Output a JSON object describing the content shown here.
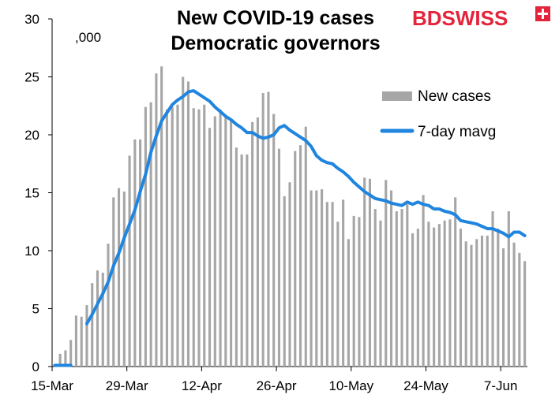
{
  "chart_data": {
    "type": "bar",
    "title": [
      "New COVID-19 cases",
      "Democratic governors"
    ],
    "unit_label": ",000",
    "ylim": [
      0,
      30
    ],
    "yticks": [
      0,
      5,
      10,
      15,
      20,
      25,
      30
    ],
    "ytick_labels": [
      "0",
      "5",
      "10",
      "15",
      "20",
      "25",
      "30"
    ],
    "xtick_labels": [
      "15-Mar",
      "29-Mar",
      "12-Apr",
      "26-Apr",
      "10-May",
      "24-May",
      "7-Jun"
    ],
    "dates": [
      "15-Mar",
      "16-Mar",
      "17-Mar",
      "18-Mar",
      "19-Mar",
      "20-Mar",
      "21-Mar",
      "22-Mar",
      "23-Mar",
      "24-Mar",
      "25-Mar",
      "26-Mar",
      "27-Mar",
      "28-Mar",
      "29-Mar",
      "30-Mar",
      "31-Mar",
      "1-Apr",
      "2-Apr",
      "3-Apr",
      "4-Apr",
      "5-Apr",
      "6-Apr",
      "7-Apr",
      "8-Apr",
      "9-Apr",
      "10-Apr",
      "11-Apr",
      "12-Apr",
      "13-Apr",
      "14-Apr",
      "15-Apr",
      "16-Apr",
      "17-Apr",
      "18-Apr",
      "19-Apr",
      "20-Apr",
      "21-Apr",
      "22-Apr",
      "23-Apr",
      "24-Apr",
      "25-Apr",
      "26-Apr",
      "27-Apr",
      "28-Apr",
      "29-Apr",
      "30-Apr",
      "1-May",
      "2-May",
      "3-May",
      "4-May",
      "5-May",
      "6-May",
      "7-May",
      "8-May",
      "9-May",
      "10-May",
      "11-May",
      "12-May",
      "13-May",
      "14-May",
      "15-May",
      "16-May",
      "17-May",
      "18-May",
      "19-May",
      "20-May",
      "21-May",
      "22-May",
      "23-May",
      "24-May",
      "25-May",
      "26-May",
      "27-May",
      "28-May",
      "29-May",
      "30-May",
      "31-May",
      "1-Jun",
      "2-Jun",
      "3-Jun",
      "4-Jun",
      "5-Jun",
      "6-Jun",
      "7-Jun",
      "8-Jun",
      "9-Jun",
      "10-Jun",
      "11-Jun"
    ],
    "series": [
      {
        "name": "New cases",
        "type": "bar",
        "color": "#a6a6a6",
        "values": [
          0.1,
          1.1,
          1.4,
          2.3,
          4.4,
          4.3,
          5.3,
          7.2,
          8.3,
          8.1,
          10.6,
          14.6,
          15.4,
          15.1,
          18.2,
          19.6,
          19.6,
          22.4,
          22.8,
          25.3,
          25.9,
          22.2,
          22.4,
          22.6,
          25.0,
          24.6,
          22.3,
          22.2,
          22.6,
          20.6,
          21.6,
          22.2,
          21.6,
          21.2,
          18.9,
          18.3,
          18.3,
          21.1,
          21.5,
          23.6,
          23.7,
          21.8,
          18.8,
          14.7,
          15.9,
          18.6,
          19.1,
          20.7,
          15.2,
          15.2,
          15.3,
          14.2,
          14.2,
          12.5,
          14.4,
          11.0,
          13.0,
          12.9,
          16.3,
          16.2,
          13.6,
          12.6,
          16.1,
          15.2,
          13.4,
          13.6,
          14.0,
          11.5,
          11.9,
          14.8,
          12.5,
          12.0,
          12.3,
          12.6,
          12.7,
          14.6,
          11.9,
          10.8,
          10.5,
          11.0,
          11.3,
          11.3,
          13.4,
          11.9,
          10.2,
          13.4,
          10.7,
          9.8,
          9.1
        ],
        "values_note": ""
      },
      {
        "name": "7-day mavg",
        "type": "line",
        "color": "#1f85de",
        "start_index": 0,
        "values": [
          0.1,
          0.1,
          0.1,
          0.1,
          null,
          null,
          3.7,
          4.5,
          5.4,
          6.3,
          7.3,
          8.7,
          9.8,
          11.1,
          12.3,
          13.5,
          15.1,
          16.6,
          18.5,
          19.9,
          21.2,
          21.9,
          22.6,
          23.0,
          23.3,
          23.7,
          23.8,
          23.5,
          23.2,
          22.9,
          22.4,
          22.0,
          21.6,
          21.3,
          20.9,
          20.6,
          20.2,
          20.2,
          19.9,
          19.7,
          19.8,
          20.0,
          20.6,
          20.8,
          20.4,
          20.1,
          19.8,
          19.5,
          19.0,
          18.2,
          17.8,
          17.6,
          17.5,
          17.1,
          16.8,
          16.4,
          15.9,
          15.5,
          15.1,
          14.8,
          14.5,
          14.4,
          14.3,
          14.1,
          14.0,
          13.9,
          14.2,
          14.0,
          14.2,
          14.0,
          13.9,
          13.6,
          13.6,
          13.4,
          13.3,
          13.1,
          12.6,
          12.5,
          12.4,
          12.3,
          12.1,
          11.9,
          11.9,
          11.7,
          11.5,
          11.2,
          11.6,
          11.6,
          11.3
        ]
      }
    ],
    "legend": {
      "placement": "right-upper",
      "entries": [
        "New cases",
        "7-day mavg"
      ]
    },
    "grid": false
  },
  "logo": {
    "text_main": "BDSWISS",
    "accent": "#e3243b",
    "text_color": "#e3243b"
  }
}
